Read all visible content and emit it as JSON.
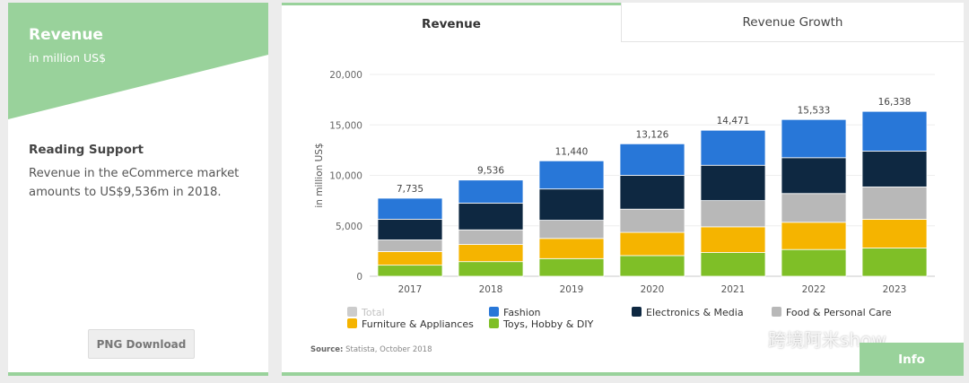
{
  "left_card": {
    "title": "Revenue",
    "subtitle": "in million US$",
    "reading_support_title": "Reading Support",
    "reading_support_text": "Revenue in the eCommerce market amounts to US$9,536m in 2018.",
    "png_button": "PNG Download",
    "header_color": "#99d29b"
  },
  "tabs": [
    {
      "label": "Revenue",
      "active": true
    },
    {
      "label": "Revenue Growth",
      "active": false
    }
  ],
  "source": {
    "label": "Source:",
    "text": "Statista, October 2018"
  },
  "info_button": "Info",
  "watermark": "跨境阿米show",
  "chart_data": {
    "type": "bar",
    "stacked": true,
    "ylabel": "in million US$",
    "ylim": [
      0,
      20000
    ],
    "yticks": [
      "0",
      "5,000",
      "10,000",
      "15,000",
      "20,000"
    ],
    "ytick_values": [
      0,
      5000,
      10000,
      15000,
      20000
    ],
    "categories": [
      "2017",
      "2018",
      "2019",
      "2020",
      "2021",
      "2022",
      "2023"
    ],
    "totals": [
      7735,
      9536,
      11440,
      13126,
      14471,
      15533,
      16338
    ],
    "total_labels": [
      "7,735",
      "9,536",
      "11,440",
      "13,126",
      "14,471",
      "15,533",
      "16,338"
    ],
    "series": [
      {
        "name": "Toys, Hobby & DIY",
        "color": "#7fbf27",
        "values": [
          1100,
          1450,
          1750,
          2050,
          2350,
          2650,
          2800
        ]
      },
      {
        "name": "Furniture & Appliances",
        "color": "#f5b400",
        "values": [
          1350,
          1700,
          2000,
          2300,
          2550,
          2700,
          2850
        ]
      },
      {
        "name": "Food & Personal Care",
        "color": "#b8b8b8",
        "values": [
          1150,
          1450,
          1800,
          2300,
          2600,
          2850,
          3200
        ]
      },
      {
        "name": "Electronics & Media",
        "color": "#0e2841",
        "values": [
          2050,
          2650,
          3100,
          3350,
          3500,
          3550,
          3550
        ]
      },
      {
        "name": "Fashion",
        "color": "#2877d8",
        "values": [
          2085,
          2286,
          2790,
          3126,
          3471,
          3783,
          3938
        ]
      }
    ],
    "legend": [
      {
        "name": "Total",
        "color": "#cccccc",
        "muted": true
      },
      {
        "name": "Fashion",
        "color": "#2877d8"
      },
      {
        "name": "Electronics & Media",
        "color": "#0e2841"
      },
      {
        "name": "Food & Personal Care",
        "color": "#b8b8b8"
      },
      {
        "name": "Furniture & Appliances",
        "color": "#f5b400"
      },
      {
        "name": "Toys, Hobby & DIY",
        "color": "#7fbf27"
      }
    ],
    "legend_position": "bottom",
    "grid": true
  }
}
